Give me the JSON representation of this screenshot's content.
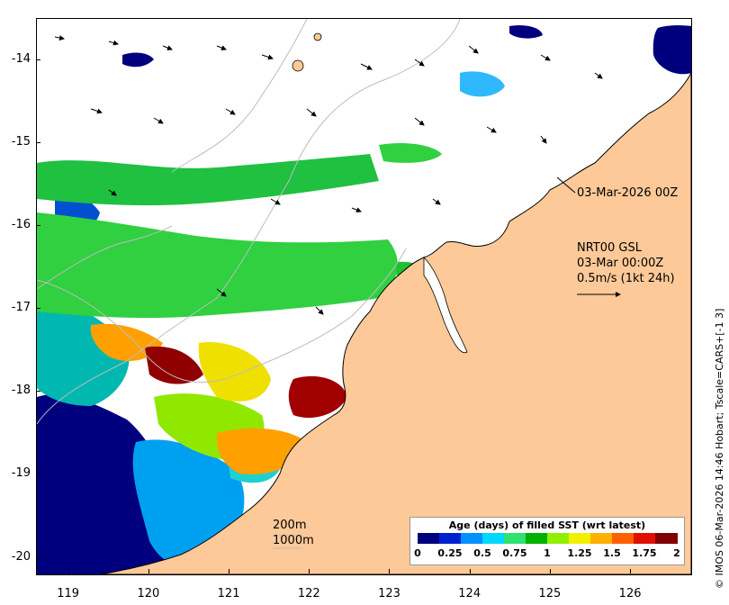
{
  "y_ticks": [
    {
      "label": "-14",
      "lat": -14
    },
    {
      "label": "-15",
      "lat": -15
    },
    {
      "label": "-16",
      "lat": -16
    },
    {
      "label": "-17",
      "lat": -17
    },
    {
      "label": "-18",
      "lat": -18
    },
    {
      "label": "-19",
      "lat": -19
    },
    {
      "label": "-20",
      "lat": -20
    }
  ],
  "x_ticks": [
    {
      "label": "119",
      "lon": 119
    },
    {
      "label": "120",
      "lon": 120
    },
    {
      "label": "121",
      "lon": 121
    },
    {
      "label": "122",
      "lon": 122
    },
    {
      "label": "123",
      "lon": 123
    },
    {
      "label": "124",
      "lon": 124
    },
    {
      "label": "125",
      "lon": 125
    },
    {
      "label": "126",
      "lon": 126
    }
  ],
  "annotations": {
    "coast_date": "03-Mar-2026 00Z",
    "product": "NRT00 GSL",
    "product_time": "03-Mar 00:00Z",
    "vector_scale": "0.5m/s (1kt 24h)",
    "contour_200": "200m",
    "contour_1000": "1000m"
  },
  "credit": "© IMOS 06-Mar-2026 14:46 Hobart; Tscale=CARS+[-1 3]",
  "legend": {
    "title": "Age (days) of filled SST (wrt latest)",
    "ticks": [
      "0",
      "0.25",
      "0.5",
      "0.75",
      "1",
      "1.25",
      "1.5",
      "1.75",
      "2"
    ],
    "colors": [
      "#00007f",
      "#0020d0",
      "#0090ff",
      "#00d8ff",
      "#30e070",
      "#00b000",
      "#90f000",
      "#f0f000",
      "#ffb000",
      "#ff6000",
      "#e01000",
      "#800000"
    ]
  },
  "colors": {
    "land": "#fdc998",
    "no_data": "#ffffff",
    "isobath": "#bdbdbd"
  },
  "map_extent": {
    "lon": [
      118.6,
      126.75
    ],
    "lat": [
      -20.2,
      -13.5
    ]
  }
}
